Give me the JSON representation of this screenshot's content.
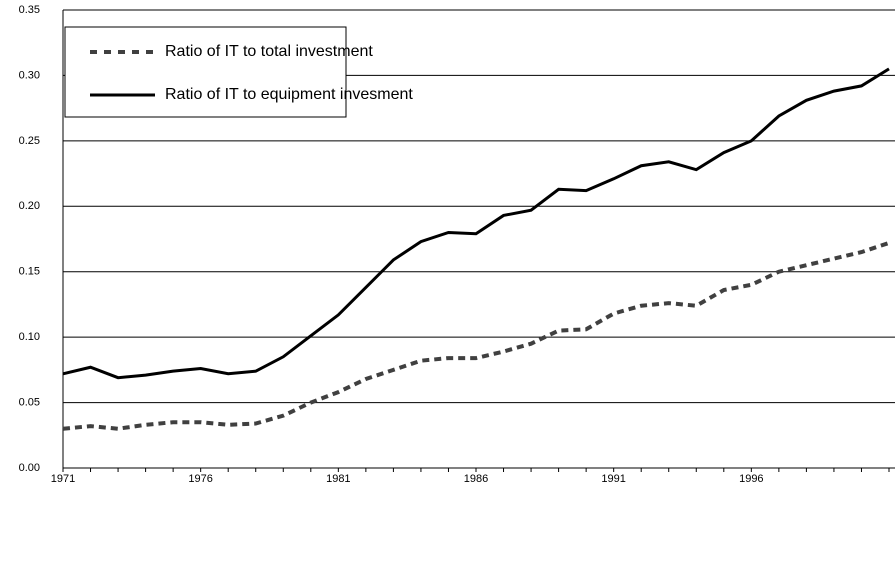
{
  "chart_data": {
    "type": "line",
    "categories": [
      "1971",
      null,
      null,
      null,
      null,
      "1976",
      null,
      null,
      null,
      null,
      "1981",
      null,
      null,
      null,
      null,
      "1986",
      null,
      null,
      null,
      null,
      "1991",
      null,
      null,
      null,
      null,
      "1996",
      null,
      null,
      null,
      null,
      null
    ],
    "series": [
      {
        "name": "Ratio of IT to total investment",
        "color": "#404040",
        "dash": true,
        "values": [
          0.03,
          0.032,
          0.03,
          0.033,
          0.035,
          0.035,
          0.033,
          0.034,
          0.04,
          0.05,
          0.058,
          0.068,
          0.075,
          0.082,
          0.084,
          0.084,
          0.089,
          0.095,
          0.105,
          0.106,
          0.118,
          0.124,
          0.126,
          0.124,
          0.136,
          0.14,
          0.15,
          0.155,
          0.16,
          0.165,
          0.172
        ]
      },
      {
        "name": "Ratio of IT to equipment invesment",
        "color": "#000000",
        "dash": false,
        "values": [
          0.072,
          0.077,
          0.069,
          0.071,
          0.074,
          0.076,
          0.072,
          0.074,
          0.085,
          0.101,
          0.117,
          0.138,
          0.159,
          0.173,
          0.18,
          0.179,
          0.193,
          0.197,
          0.213,
          0.212,
          0.221,
          0.231,
          0.234,
          0.228,
          0.241,
          0.25,
          0.269,
          0.281,
          0.288,
          0.292,
          0.305
        ]
      }
    ],
    "ylim": [
      0,
      0.35
    ],
    "yticks": [
      {
        "value": 0,
        "label": "0.00"
      },
      {
        "value": 0.05,
        "label": "0.05"
      },
      {
        "value": 0.1,
        "label": "0.10"
      },
      {
        "value": 0.15,
        "label": "0.15"
      },
      {
        "value": 0.2,
        "label": "0.20"
      },
      {
        "value": 0.25,
        "label": "0.25"
      },
      {
        "value": 0.3,
        "label": "0.30"
      },
      {
        "value": 0.35,
        "label": "0.35"
      }
    ],
    "grid": true,
    "legend": "upper left"
  }
}
